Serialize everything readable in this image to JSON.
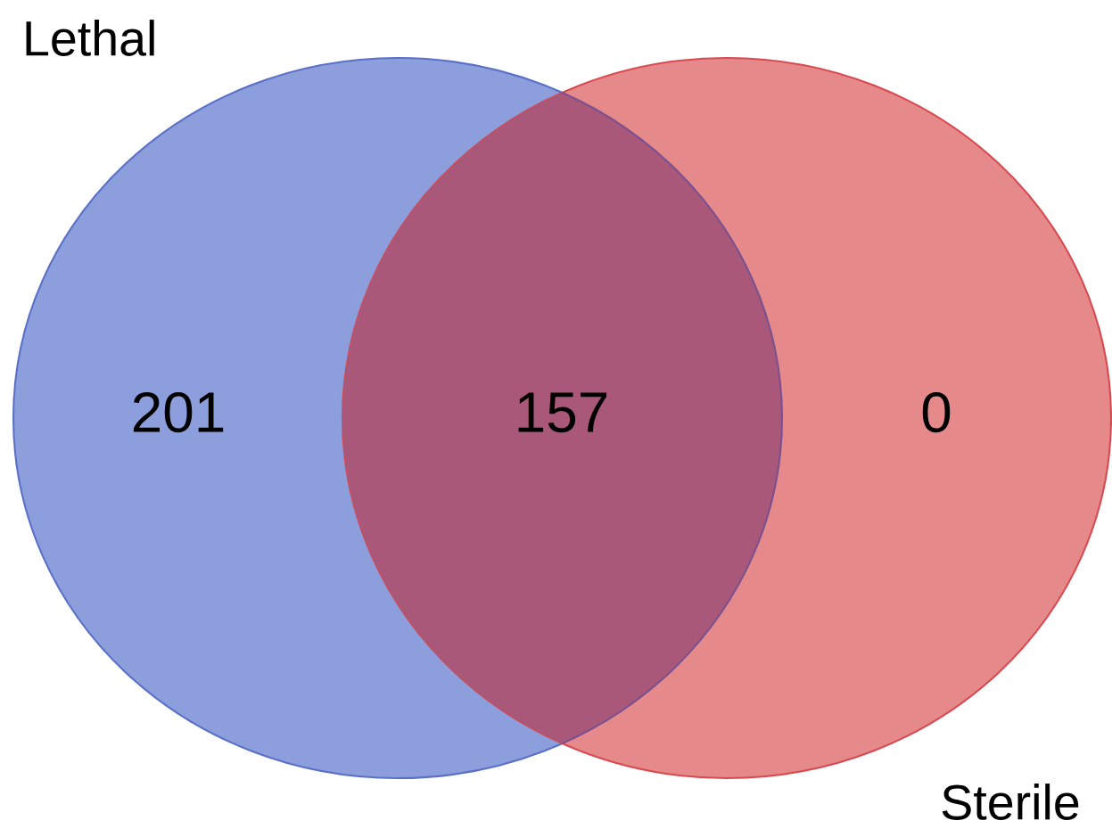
{
  "chart_data": {
    "type": "other",
    "categories": [
      null,
      null,
      null
    ],
    "values": [
      201,
      157,
      0
    ],
    "colors": [
      "#8c9edc",
      "#a9587a",
      "#e6898a"
    ],
    "data_labels": true,
    "annotations": [
      "Lethal",
      "Sterile"
    ]
  }
}
